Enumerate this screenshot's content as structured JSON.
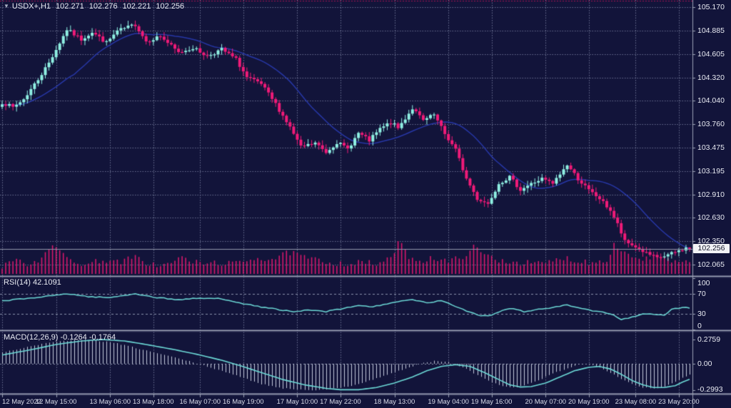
{
  "title": {
    "marker": "▼",
    "symbol": "USDX+,H1",
    "open": "102.271",
    "high": "102.276",
    "low": "102.221",
    "close": "102.256"
  },
  "price_axis": {
    "ticks": [
      "105.170",
      "104.885",
      "104.605",
      "104.320",
      "104.040",
      "103.760",
      "103.475",
      "103.195",
      "102.910",
      "102.630",
      "102.350",
      "102.065"
    ],
    "current": "102.256"
  },
  "time_axis": {
    "labels": [
      "12 May 2022",
      "12 May 15:00",
      "13 May 06:00",
      "13 May 18:00",
      "16 May 07:00",
      "16 May 19:00",
      "17 May 10:00",
      "17 May 22:00",
      "18 May 13:00",
      "19 May 04:00",
      "19 May 16:00",
      "20 May 07:00",
      "20 May 19:00",
      "23 May 08:00",
      "23 May 20:00"
    ],
    "bar_index": [
      0,
      15,
      30,
      42,
      55,
      67,
      82,
      94,
      109,
      124,
      136,
      151,
      163,
      176,
      188
    ]
  },
  "rsi_panel": {
    "label": "RSI(14)",
    "value": "42.1091",
    "ticks": [
      "100",
      "70",
      "30",
      "0"
    ]
  },
  "macd_panel": {
    "label": "MACD(12,26,9)",
    "main_value": "-0.1264",
    "signal_value": "-0.1764",
    "ticks": [
      "0.2759",
      "0.00",
      "-0.2993"
    ]
  },
  "colors": {
    "background": "#12143a",
    "grid": "#7b82a3",
    "bull": "#8ff0e3",
    "bear": "#f01a78",
    "volume": "#d6186b",
    "ma_line": "#2737a6",
    "indicator_line": "#6cd9d6",
    "histogram": "#c2c8da",
    "separator": "#9ba1b5",
    "axis_text": "#e9ebf3",
    "bid_line": "#9298ac",
    "marker_bg": "#f2f3f6",
    "marker_text": "#101228",
    "top_level_line": "#a21050"
  },
  "chart_data": {
    "type": "candlestick",
    "symbol": "USDX+",
    "timeframe": "H1",
    "bars": 192,
    "last_bar": {
      "open": 102.271,
      "high": 102.276,
      "low": 102.221,
      "close": 102.256
    },
    "price_min_label": 102.065,
    "price_max_label": 105.17,
    "ma_period": 21,
    "close_path": [
      [
        0,
        104.02
      ],
      [
        3,
        103.96
      ],
      [
        6,
        104.06
      ],
      [
        10,
        104.3
      ],
      [
        13,
        104.5
      ],
      [
        18,
        104.9
      ],
      [
        22,
        104.78
      ],
      [
        25,
        104.87
      ],
      [
        29,
        104.74
      ],
      [
        32,
        104.88
      ],
      [
        37,
        104.96
      ],
      [
        40,
        104.76
      ],
      [
        44,
        104.82
      ],
      [
        49,
        104.62
      ],
      [
        53,
        104.68
      ],
      [
        57,
        104.58
      ],
      [
        61,
        104.66
      ],
      [
        65,
        104.54
      ],
      [
        68,
        104.32
      ],
      [
        72,
        104.24
      ],
      [
        76,
        104.0
      ],
      [
        80,
        103.72
      ],
      [
        83,
        103.48
      ],
      [
        87,
        103.53
      ],
      [
        90,
        103.42
      ],
      [
        93,
        103.54
      ],
      [
        96,
        103.46
      ],
      [
        99,
        103.65
      ],
      [
        102,
        103.56
      ],
      [
        105,
        103.7
      ],
      [
        108,
        103.78
      ],
      [
        110,
        103.71
      ],
      [
        114,
        103.95
      ],
      [
        117,
        103.8
      ],
      [
        120,
        103.87
      ],
      [
        123,
        103.64
      ],
      [
        126,
        103.45
      ],
      [
        129,
        103.1
      ],
      [
        132,
        102.86
      ],
      [
        135,
        102.8
      ],
      [
        138,
        103.05
      ],
      [
        141,
        103.12
      ],
      [
        144,
        102.97
      ],
      [
        147,
        103.04
      ],
      [
        150,
        103.1
      ],
      [
        153,
        103.04
      ],
      [
        157,
        103.27
      ],
      [
        160,
        103.1
      ],
      [
        163,
        102.96
      ],
      [
        166,
        102.86
      ],
      [
        169,
        102.72
      ],
      [
        171,
        102.55
      ],
      [
        173,
        102.34
      ],
      [
        176,
        102.28
      ],
      [
        179,
        102.2
      ],
      [
        182,
        102.14
      ],
      [
        185,
        102.18
      ],
      [
        188,
        102.23
      ],
      [
        190,
        102.271
      ],
      [
        191,
        102.256
      ]
    ],
    "volume_path": [
      [
        0,
        0.25
      ],
      [
        3,
        0.45
      ],
      [
        6,
        0.3
      ],
      [
        10,
        0.4
      ],
      [
        14,
        0.95
      ],
      [
        17,
        0.55
      ],
      [
        20,
        0.35
      ],
      [
        24,
        0.3
      ],
      [
        28,
        0.45
      ],
      [
        32,
        0.35
      ],
      [
        37,
        0.5
      ],
      [
        41,
        0.3
      ],
      [
        45,
        0.25
      ],
      [
        50,
        0.5
      ],
      [
        55,
        0.3
      ],
      [
        60,
        0.35
      ],
      [
        65,
        0.3
      ],
      [
        70,
        0.5
      ],
      [
        75,
        0.45
      ],
      [
        80,
        0.65
      ],
      [
        84,
        0.5
      ],
      [
        88,
        0.4
      ],
      [
        92,
        0.35
      ],
      [
        96,
        0.3
      ],
      [
        100,
        0.35
      ],
      [
        104,
        0.3
      ],
      [
        108,
        0.45
      ],
      [
        110,
        1.0
      ],
      [
        113,
        0.55
      ],
      [
        116,
        0.4
      ],
      [
        120,
        0.5
      ],
      [
        124,
        0.35
      ],
      [
        128,
        0.55
      ],
      [
        131,
        0.8
      ],
      [
        134,
        0.6
      ],
      [
        137,
        0.45
      ],
      [
        140,
        0.4
      ],
      [
        144,
        0.35
      ],
      [
        148,
        0.3
      ],
      [
        152,
        0.35
      ],
      [
        156,
        0.5
      ],
      [
        160,
        0.4
      ],
      [
        164,
        0.35
      ],
      [
        168,
        0.45
      ],
      [
        170,
        0.9
      ],
      [
        173,
        0.65
      ],
      [
        176,
        0.5
      ],
      [
        179,
        0.45
      ],
      [
        182,
        0.55
      ],
      [
        185,
        0.4
      ],
      [
        188,
        0.35
      ],
      [
        191,
        0.3
      ]
    ],
    "indicators": {
      "rsi": {
        "period": 14,
        "current": 42.1091,
        "levels": [
          70,
          30
        ],
        "scale": [
          0,
          100
        ],
        "path": [
          [
            0,
            56
          ],
          [
            6,
            60
          ],
          [
            12,
            64
          ],
          [
            18,
            70
          ],
          [
            24,
            64
          ],
          [
            30,
            62
          ],
          [
            37,
            70
          ],
          [
            42,
            63
          ],
          [
            49,
            58
          ],
          [
            55,
            61
          ],
          [
            61,
            60
          ],
          [
            65,
            54
          ],
          [
            70,
            46
          ],
          [
            76,
            40
          ],
          [
            81,
            34
          ],
          [
            85,
            38
          ],
          [
            90,
            35
          ],
          [
            95,
            41
          ],
          [
            99,
            47
          ],
          [
            103,
            44
          ],
          [
            108,
            52
          ],
          [
            114,
            58
          ],
          [
            118,
            52
          ],
          [
            122,
            56
          ],
          [
            126,
            45
          ],
          [
            130,
            34
          ],
          [
            133,
            27
          ],
          [
            136,
            28
          ],
          [
            139,
            38
          ],
          [
            142,
            41
          ],
          [
            145,
            35
          ],
          [
            149,
            39
          ],
          [
            153,
            43
          ],
          [
            157,
            48
          ],
          [
            161,
            40
          ],
          [
            165,
            36
          ],
          [
            169,
            31
          ],
          [
            172,
            20
          ],
          [
            175,
            24
          ],
          [
            178,
            30
          ],
          [
            181,
            30
          ],
          [
            184,
            27
          ],
          [
            186,
            40
          ],
          [
            189,
            43
          ],
          [
            191,
            42.1
          ]
        ]
      },
      "macd": {
        "fast": 12,
        "slow": 26,
        "signal_period": 9,
        "main_current": -0.1264,
        "signal_current": -0.1764,
        "scale_max": 0.2759,
        "scale_min": -0.2993,
        "main_path": [
          [
            0,
            0.13
          ],
          [
            8,
            0.2
          ],
          [
            14,
            0.25
          ],
          [
            20,
            0.27
          ],
          [
            25,
            0.27
          ],
          [
            31,
            0.24
          ],
          [
            37,
            0.18
          ],
          [
            44,
            0.11
          ],
          [
            50,
            0.05
          ],
          [
            56,
            -0.02
          ],
          [
            61,
            -0.08
          ],
          [
            66,
            -0.15
          ],
          [
            72,
            -0.23
          ],
          [
            78,
            -0.28
          ],
          [
            84,
            -0.295
          ],
          [
            88,
            -0.299
          ],
          [
            93,
            -0.28
          ],
          [
            98,
            -0.24
          ],
          [
            103,
            -0.18
          ],
          [
            108,
            -0.11
          ],
          [
            113,
            -0.04
          ],
          [
            117,
            0.01
          ],
          [
            120,
            0.03
          ],
          [
            124,
            0.02
          ],
          [
            128,
            -0.04
          ],
          [
            132,
            -0.13
          ],
          [
            136,
            -0.21
          ],
          [
            139,
            -0.26
          ],
          [
            142,
            -0.27
          ],
          [
            145,
            -0.25
          ],
          [
            149,
            -0.19
          ],
          [
            153,
            -0.11
          ],
          [
            157,
            -0.05
          ],
          [
            160,
            -0.01
          ],
          [
            163,
            0.0
          ],
          [
            166,
            -0.04
          ],
          [
            169,
            -0.1
          ],
          [
            172,
            -0.17
          ],
          [
            175,
            -0.23
          ],
          [
            178,
            -0.27
          ],
          [
            181,
            -0.28
          ],
          [
            184,
            -0.26
          ],
          [
            187,
            -0.21
          ],
          [
            189,
            -0.16
          ],
          [
            191,
            -0.1264
          ]
        ],
        "signal_path": [
          [
            0,
            0.1
          ],
          [
            8,
            0.16
          ],
          [
            15,
            0.22
          ],
          [
            22,
            0.26
          ],
          [
            28,
            0.2759
          ],
          [
            34,
            0.26
          ],
          [
            40,
            0.22
          ],
          [
            48,
            0.16
          ],
          [
            55,
            0.1
          ],
          [
            61,
            0.04
          ],
          [
            66,
            -0.02
          ],
          [
            72,
            -0.1
          ],
          [
            78,
            -0.18
          ],
          [
            84,
            -0.24
          ],
          [
            90,
            -0.28
          ],
          [
            94,
            -0.2959
          ],
          [
            99,
            -0.2959
          ],
          [
            104,
            -0.27
          ],
          [
            109,
            -0.22
          ],
          [
            114,
            -0.15
          ],
          [
            118,
            -0.08
          ],
          [
            122,
            -0.03
          ],
          [
            126,
            -0.01
          ],
          [
            130,
            -0.03
          ],
          [
            134,
            -0.1
          ],
          [
            138,
            -0.18
          ],
          [
            141,
            -0.24
          ],
          [
            144,
            -0.265
          ],
          [
            147,
            -0.26
          ],
          [
            151,
            -0.22
          ],
          [
            155,
            -0.15
          ],
          [
            159,
            -0.08
          ],
          [
            163,
            -0.04
          ],
          [
            166,
            -0.03
          ],
          [
            169,
            -0.06
          ],
          [
            172,
            -0.12
          ],
          [
            175,
            -0.19
          ],
          [
            178,
            -0.24
          ],
          [
            181,
            -0.27
          ],
          [
            184,
            -0.27
          ],
          [
            187,
            -0.25
          ],
          [
            189,
            -0.21
          ],
          [
            191,
            -0.1764
          ]
        ]
      }
    }
  }
}
